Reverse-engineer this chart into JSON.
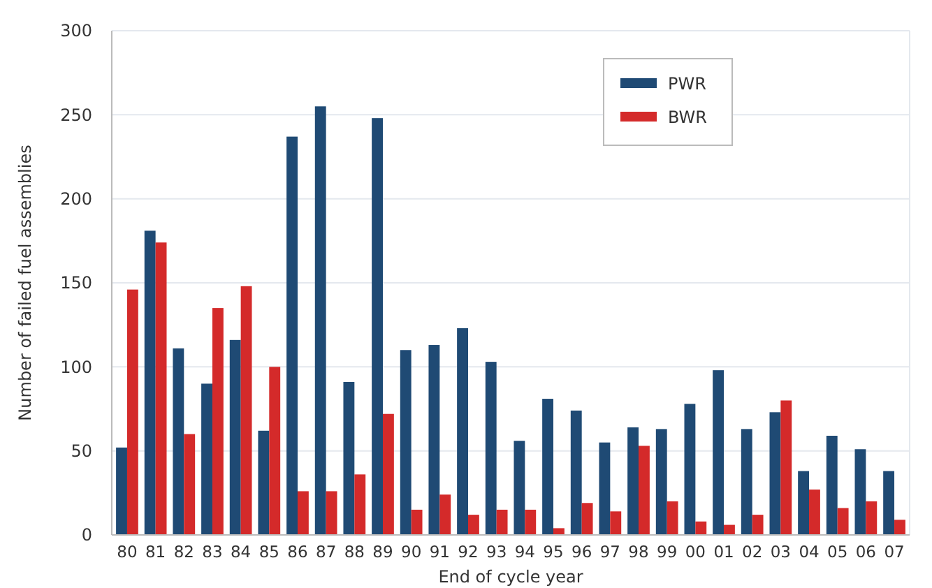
{
  "chart_data": {
    "type": "bar",
    "xlabel": "End of cycle year",
    "ylabel": "Number of failed fuel assemblies",
    "categories": [
      "80",
      "81",
      "82",
      "83",
      "84",
      "85",
      "86",
      "87",
      "88",
      "89",
      "90",
      "91",
      "92",
      "93",
      "94",
      "95",
      "96",
      "97",
      "98",
      "99",
      "00",
      "01",
      "02",
      "03",
      "04",
      "05",
      "06",
      "07"
    ],
    "series": [
      {
        "name": "PWR",
        "color": "#1f4a74",
        "values": [
          52,
          181,
          111,
          90,
          116,
          62,
          237,
          255,
          91,
          248,
          110,
          113,
          123,
          103,
          56,
          81,
          74,
          55,
          64,
          63,
          78,
          98,
          63,
          73,
          38,
          59,
          51,
          38
        ]
      },
      {
        "name": "BWR",
        "color": "#d42a2a",
        "values": [
          146,
          174,
          60,
          135,
          148,
          100,
          26,
          26,
          36,
          72,
          15,
          24,
          12,
          15,
          15,
          4,
          19,
          14,
          53,
          20,
          8,
          6,
          12,
          80,
          27,
          16,
          20,
          9
        ]
      }
    ],
    "ylim": [
      0,
      300
    ],
    "yticks": [
      0,
      50,
      100,
      150,
      200,
      250,
      300
    ],
    "grid": "y",
    "legend": "top right"
  }
}
